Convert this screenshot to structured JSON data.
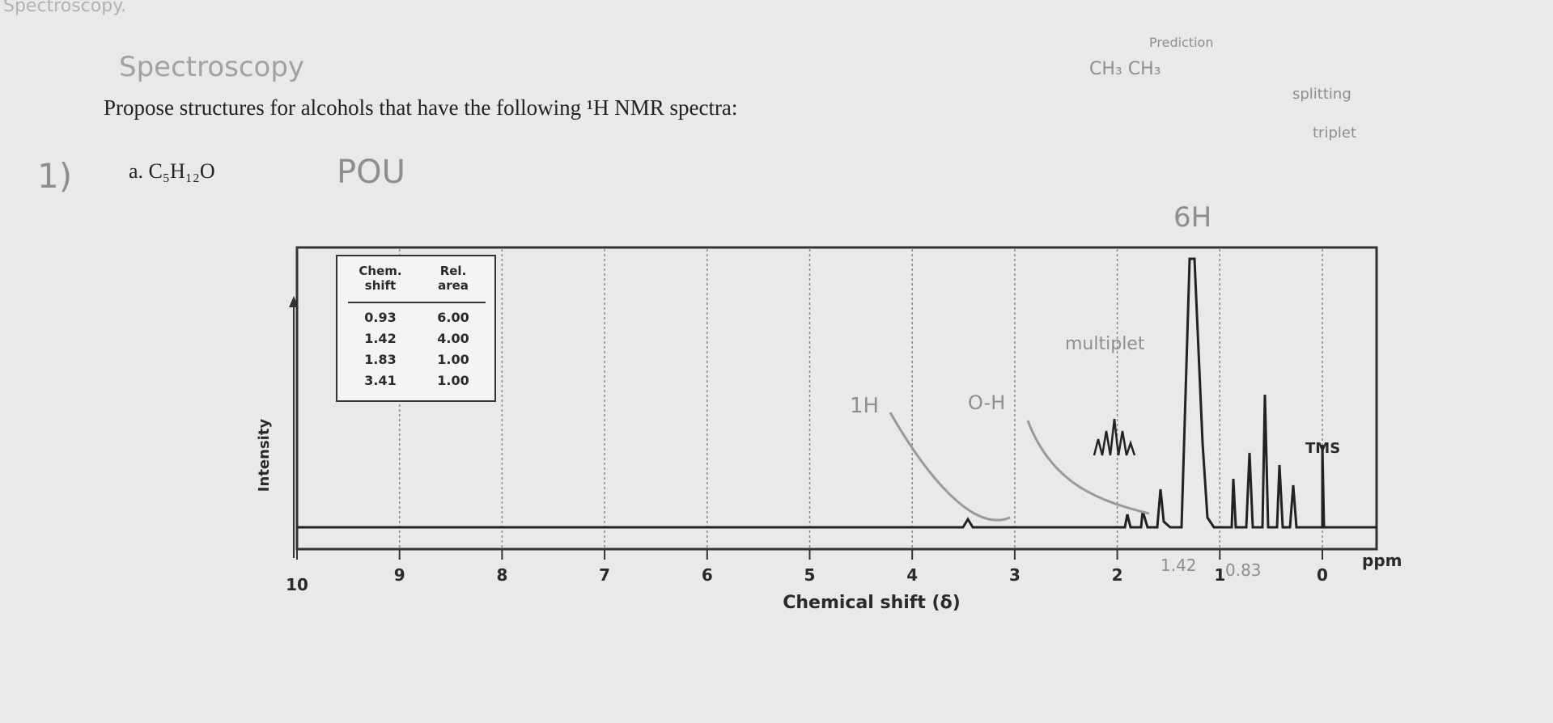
{
  "header": {
    "faded_title": "Spectroscopy.",
    "handwritten_title": "Spectroscopy"
  },
  "question": {
    "text": "Propose structures for alcohols that have the following ¹H NMR spectra:"
  },
  "problem": {
    "number": "1)",
    "label": "a. C₅H₁₂O",
    "note": "POU"
  },
  "annotations": [
    "Prediction",
    "CH₃ CH₃",
    "splitting",
    "triplet",
    "6H",
    "multiplet",
    "1H",
    "O-H",
    "1.42",
    "0.83"
  ],
  "table": {
    "headers": [
      "Chem. shift",
      "Rel. area"
    ],
    "rows": [
      [
        "0.93",
        "6.00"
      ],
      [
        "1.42",
        "4.00"
      ],
      [
        "1.83",
        "1.00"
      ],
      [
        "3.41",
        "1.00"
      ]
    ]
  },
  "spectrum": {
    "y_label": "Intensity",
    "x_label": "Chemical shift (δ)",
    "x_ticks": [
      "10",
      "9",
      "8",
      "7",
      "6",
      "5",
      "4",
      "3",
      "2",
      "1",
      "0"
    ],
    "unit": "ppm",
    "reference": "TMS"
  }
}
